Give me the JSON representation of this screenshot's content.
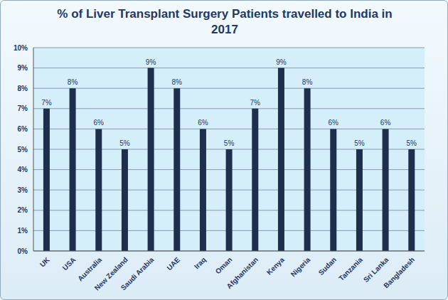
{
  "chart_data": {
    "type": "bar",
    "title": "% of Liver Transplant Surgery Patients travelled to India in 2017",
    "categories": [
      "UK",
      "USA",
      "Australia",
      "New Zealand",
      "Saudi Arabia",
      "UAE",
      "Iraq",
      "Oman",
      "Afghanistan",
      "Kenya",
      "Nigeria",
      "Sudan",
      "Tanzania",
      "Sri Lanka",
      "Bangladesh"
    ],
    "values": [
      7,
      8,
      6,
      5,
      9,
      8,
      6,
      5,
      7,
      9,
      8,
      6,
      5,
      6,
      5
    ],
    "value_labels": [
      "7%",
      "8%",
      "6%",
      "5%",
      "9%",
      "8%",
      "6%",
      "5%",
      "7%",
      "9%",
      "8%",
      "6%",
      "5%",
      "6%",
      "5%"
    ],
    "data_labels": true,
    "color": "#1c2f4c",
    "ylim": [
      0,
      10
    ],
    "yticks": [
      {
        "value": 0,
        "label": "0%"
      },
      {
        "value": 1,
        "label": "1%"
      },
      {
        "value": 2,
        "label": "2%"
      },
      {
        "value": 3,
        "label": "3%"
      },
      {
        "value": 4,
        "label": "4%"
      },
      {
        "value": 5,
        "label": "5%"
      },
      {
        "value": 6,
        "label": "6%"
      },
      {
        "value": 7,
        "label": "7%"
      },
      {
        "value": 8,
        "label": "8%"
      },
      {
        "value": 9,
        "label": "9%"
      },
      {
        "value": 10,
        "label": "10%"
      }
    ],
    "grid": true
  }
}
